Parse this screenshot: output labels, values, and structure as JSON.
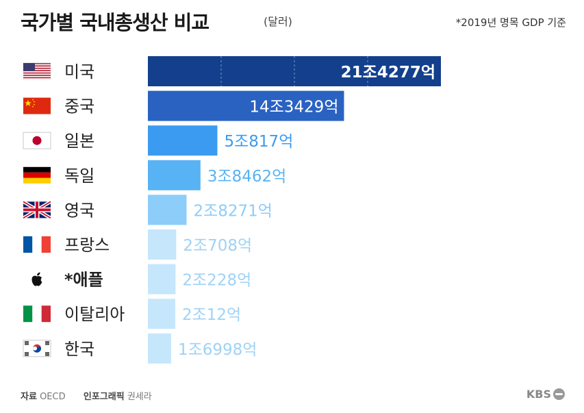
{
  "header": {
    "title": "국가별 국내총생산 비교",
    "unit": "(달러)",
    "note": "*2019년 명목 GDP 기준"
  },
  "footer": {
    "source_label": "자료",
    "source": "OECD",
    "credit_label": "인포그래픽",
    "credit": "권세라",
    "logo": "KBS"
  },
  "chart_data": {
    "type": "bar",
    "orientation": "horizontal",
    "unit": "억 달러",
    "categories": [
      "미국",
      "중국",
      "일본",
      "독일",
      "영국",
      "프랑스",
      "*애플",
      "이탈리아",
      "한국"
    ],
    "values": [
      214277,
      143429,
      50817,
      38462,
      28271,
      20708,
      20228,
      20012,
      16998
    ],
    "labels": [
      "21조4277억",
      "14조3429억",
      "5조817억",
      "3조8462억",
      "2조8271억",
      "2조708억",
      "2조228억",
      "2조12억",
      "1조6998억"
    ],
    "icons": [
      "usa-flag-icon",
      "china-flag-icon",
      "japan-flag-icon",
      "germany-flag-icon",
      "uk-flag-icon",
      "france-flag-icon",
      "apple-logo-icon",
      "italy-flag-icon",
      "korea-flag-icon"
    ],
    "bar_colors": [
      "#133f8c",
      "#2a62c2",
      "#3b9bf0",
      "#58b3f5",
      "#8ccdfa",
      "#c6e6fc",
      "#c6e6fc",
      "#c6e6fc",
      "#c6e6fc"
    ],
    "label_colors": [
      "#ffffff",
      "#ffffff",
      "#3b9bf0",
      "#58b3f5",
      "#8ccdfa",
      "#9fd2f5",
      "#9fd2f5",
      "#9fd2f5",
      "#9fd2f5"
    ],
    "bold_category": "*애플"
  }
}
